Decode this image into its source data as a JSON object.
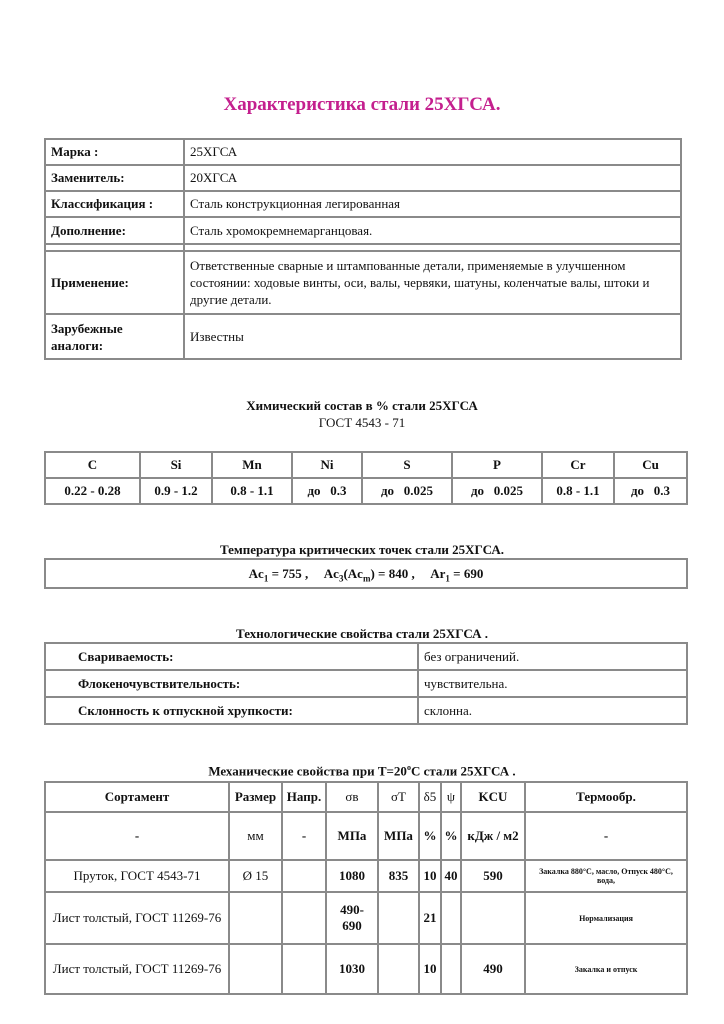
{
  "title": "Характеристика стали 25ХГСА.",
  "general": {
    "rows": [
      {
        "label": "Марка :",
        "value": "25ХГСА"
      },
      {
        "label": "Заменитель:",
        "value": "20ХГСА"
      },
      {
        "label": "Классификация :",
        "value": "Сталь конструкционная легированная"
      },
      {
        "label": "Дополнение:",
        "value": "Сталь хромокремнемарганцовая."
      },
      {
        "label": "Применение:",
        "value": "Ответственные сварные и штампованные детали, применяемые в улучшенном состоянии: ходовые винты, оси, валы, червяки, шатуны, коленчатые валы, штоки и другие детали."
      },
      {
        "label": "Зарубежные аналоги:",
        "value": "Известны"
      }
    ]
  },
  "chem": {
    "heading": "Химический состав в % стали   25ХГСА",
    "standard": "ГОСТ   4543 - 71",
    "elements": [
      "C",
      "Si",
      "Mn",
      "Ni",
      "S",
      "P",
      "Cr",
      "Cu"
    ],
    "values": [
      "0.22 - 0.28",
      "0.9 - 1.2",
      "0.8 - 1.1",
      "до   0.3",
      "до   0.025",
      "до   0.025",
      "0.8 - 1.1",
      "до   0.3"
    ]
  },
  "critical": {
    "heading": "Температура критических точек стали 25ХГСА.",
    "ac1": "755",
    "ac3": "840",
    "ar1": "690"
  },
  "tech": {
    "heading": "Технологические свойства стали 25ХГСА .",
    "rows": [
      {
        "label": "Свариваемость:",
        "value": "без ограничений."
      },
      {
        "label": "Флокеночувствительность:",
        "value": "чувствительна."
      },
      {
        "label": "Склонность к отпускной хрупкости:",
        "value": "склонна."
      }
    ]
  },
  "mech": {
    "heading": "Механические свойства при T=20",
    "heading_sup": "o",
    "heading_end": "C стали 25ХГСА .",
    "headers": [
      "Сортамент",
      "Размер",
      "Напр.",
      "σв",
      "σT",
      "δ5",
      "ψ",
      "KCU",
      "Термообр."
    ],
    "units": [
      "-",
      "мм",
      "-",
      "МПа",
      "МПа",
      "%",
      "%",
      "кДж / м2",
      "-"
    ],
    "rows": [
      [
        "Пруток, ГОСТ 4543-71",
        "Ø 15",
        "",
        "1080",
        "835",
        "10",
        "40",
        "590",
        "Закалка 880°C, масло, Отпуск 480°C, вода,"
      ],
      [
        "Лист толстый, ГОСТ 11269-76",
        "",
        "",
        "490-690",
        "",
        "21",
        "",
        "",
        "Нормализация"
      ],
      [
        "Лист толстый, ГОСТ 11269-76",
        "",
        "",
        "1030",
        "",
        "10",
        "",
        "490",
        "Закалка и отпуск"
      ]
    ]
  }
}
